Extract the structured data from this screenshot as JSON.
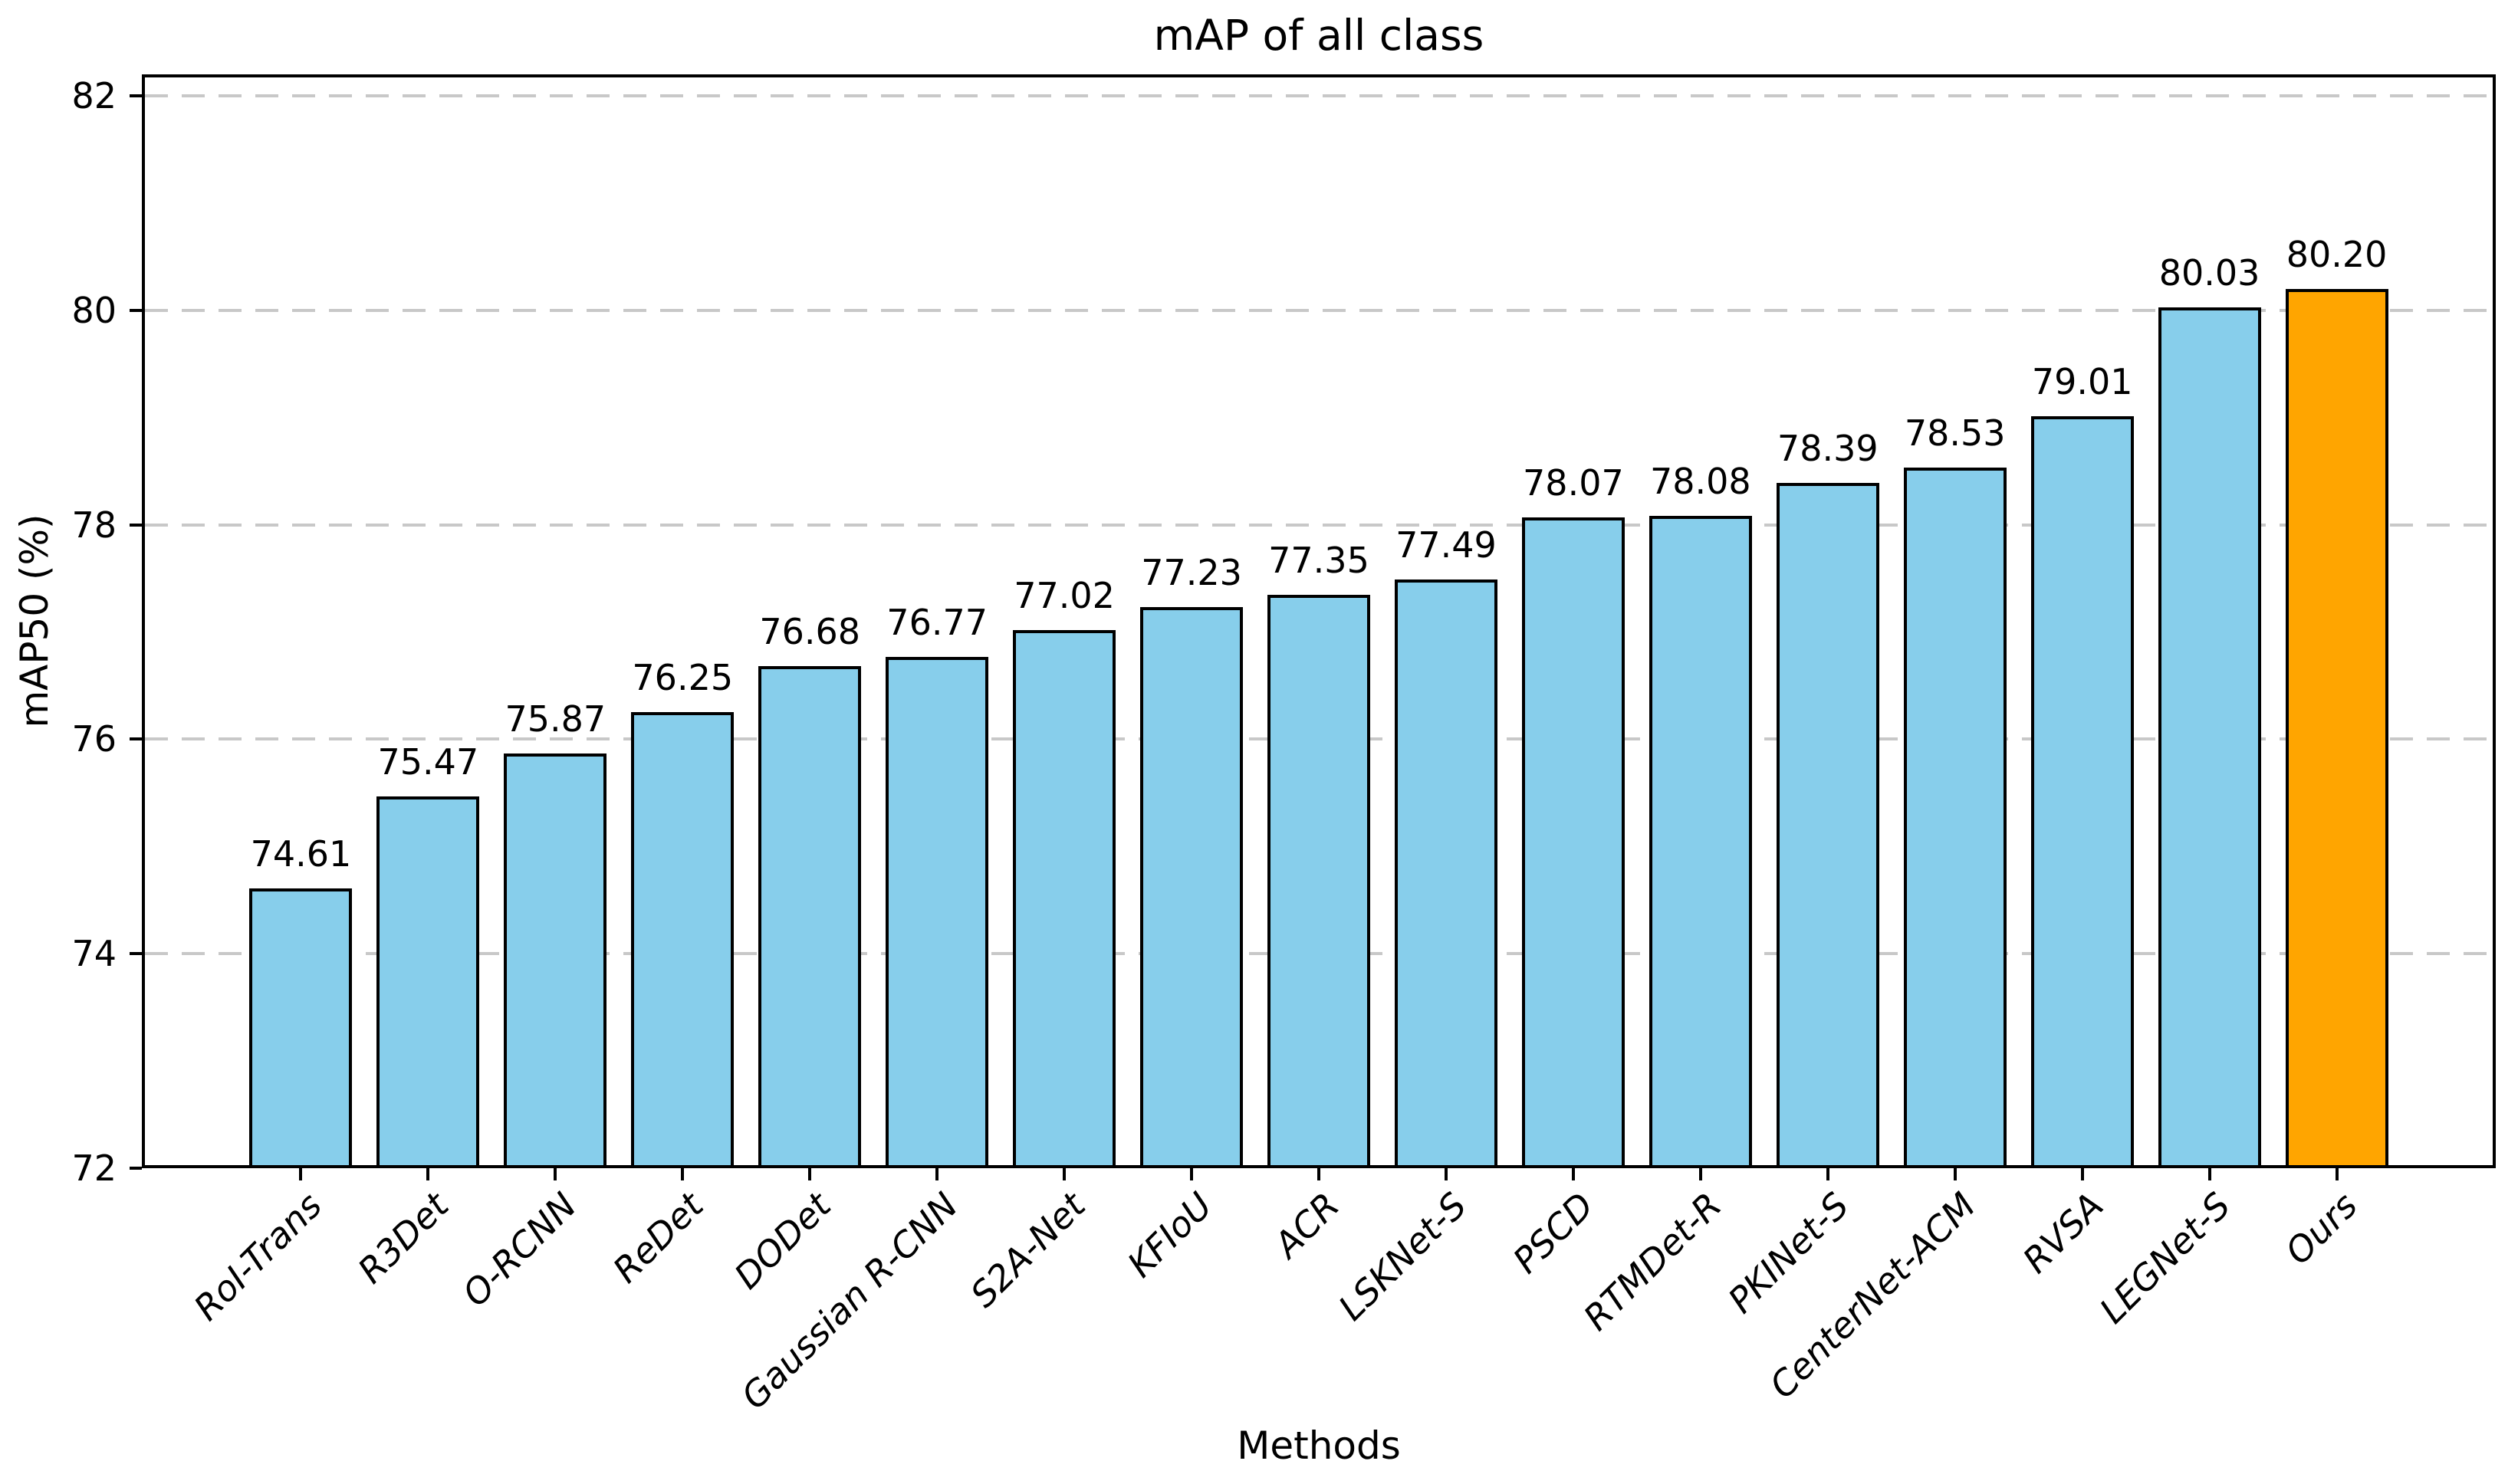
{
  "chart_data": {
    "type": "bar",
    "title": "mAP of all class",
    "xlabel": "Methods",
    "ylabel": "mAP50 (%)",
    "categories": [
      "RoI-Trans",
      "R3Det",
      "O-RCNN",
      "ReDet",
      "DODet",
      "Gaussian R-CNN",
      "S2A-Net",
      "KFIoU",
      "ACR",
      "LSKNet-S",
      "PSCD",
      "RTMDet-R",
      "PKINet-S",
      "CenterNet-ACM",
      "RVSA",
      "LEGNet-S",
      "Ours"
    ],
    "values": [
      74.61,
      75.47,
      75.87,
      76.25,
      76.68,
      76.77,
      77.02,
      77.23,
      77.35,
      77.49,
      78.07,
      78.08,
      78.39,
      78.53,
      79.01,
      80.03,
      80.2
    ],
    "value_label_decimals": 2,
    "yticks": [
      72,
      74,
      76,
      78,
      80,
      82
    ],
    "ylim": [
      72,
      82.2
    ],
    "grid": "dashed-horizontal",
    "legend": "none",
    "colors": {
      "bar": "#87CEEB",
      "highlight": "#FFA500",
      "edge": "#000000",
      "grid": "#c8c8c8",
      "background": "#ffffff"
    },
    "highlight_index": 16
  }
}
